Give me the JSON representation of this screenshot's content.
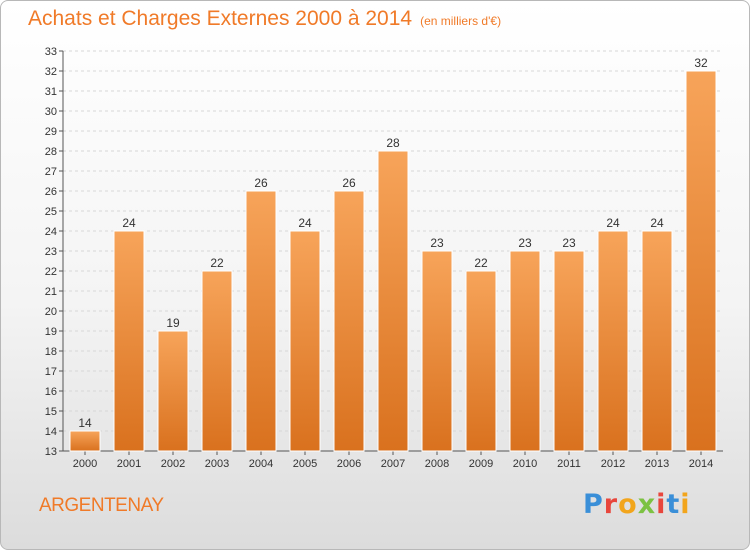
{
  "chart_data": {
    "type": "bar",
    "title": "Achats et Charges Externes 2000 à 2014",
    "subtitle": "(en milliers d'€)",
    "categories": [
      "2000",
      "2001",
      "2002",
      "2003",
      "2004",
      "2005",
      "2006",
      "2007",
      "2008",
      "2009",
      "2010",
      "2011",
      "2012",
      "2013",
      "2014"
    ],
    "values": [
      14,
      24,
      19,
      22,
      26,
      24,
      26,
      28,
      23,
      22,
      23,
      23,
      24,
      24,
      32
    ],
    "ylim": [
      13,
      33
    ],
    "yticks": [
      13,
      14,
      15,
      16,
      17,
      18,
      19,
      20,
      21,
      22,
      23,
      24,
      25,
      26,
      27,
      28,
      29,
      30,
      31,
      32,
      33
    ],
    "grid": true,
    "bar_color_top": "#f7a45a",
    "bar_color_bottom": "#d9711e"
  },
  "footer": {
    "town": "ARGENTENAY",
    "logo_letters": [
      "P",
      "r",
      "o",
      "x",
      "i",
      "t",
      "i"
    ]
  }
}
